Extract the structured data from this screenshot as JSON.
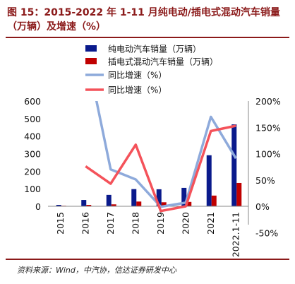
{
  "figure": {
    "title_line1": "图 15：2015-2022 年 1-11 月纯电动/插电式混动汽车销量",
    "title_line2": "（万辆）及增速（%）",
    "source": "资料来源：Wind，中汽协，信达证券研发中心"
  },
  "colors": {
    "bev": "#0a1a8c",
    "phev": "#c00000",
    "bev_growth": "#8eaadb",
    "phev_growth": "#f4525a",
    "title": "#8b1a1a"
  },
  "chart_data": {
    "type": "bar",
    "categories": [
      "2015",
      "2016",
      "2017",
      "2018",
      "2019",
      "2020",
      "2021",
      "2022.1-11"
    ],
    "series": [
      {
        "name": "纯电动汽车销量（万辆）",
        "kind": "bar",
        "axis": "left",
        "values": [
          8,
          36,
          65,
          98,
          97,
          105,
          291,
          467
        ]
      },
      {
        "name": "插电式混动汽车销量（万辆）",
        "kind": "bar",
        "axis": "left",
        "values": [
          3,
          8,
          11,
          27,
          23,
          25,
          61,
          133
        ]
      },
      {
        "name": "同比增速（%）",
        "kind": "line",
        "axis": "right",
        "values": [
          null,
          300,
          70,
          51,
          -1,
          7,
          170,
          91
        ]
      },
      {
        "name": "同比增速（%）",
        "kind": "line",
        "axis": "right",
        "values": [
          null,
          76,
          43,
          117,
          -9,
          0,
          143,
          153
        ]
      }
    ],
    "y_left": {
      "min": 0,
      "max": 600,
      "ticks": [
        0,
        100,
        200,
        300,
        400,
        500,
        600
      ]
    },
    "y_right": {
      "min": -50,
      "max": 200,
      "ticks": [
        "-50%",
        "0%",
        "50%",
        "100%",
        "150%",
        "200%"
      ],
      "tick_values": [
        -50,
        0,
        50,
        100,
        150,
        200
      ]
    },
    "legend": "top-left",
    "grid": false
  }
}
